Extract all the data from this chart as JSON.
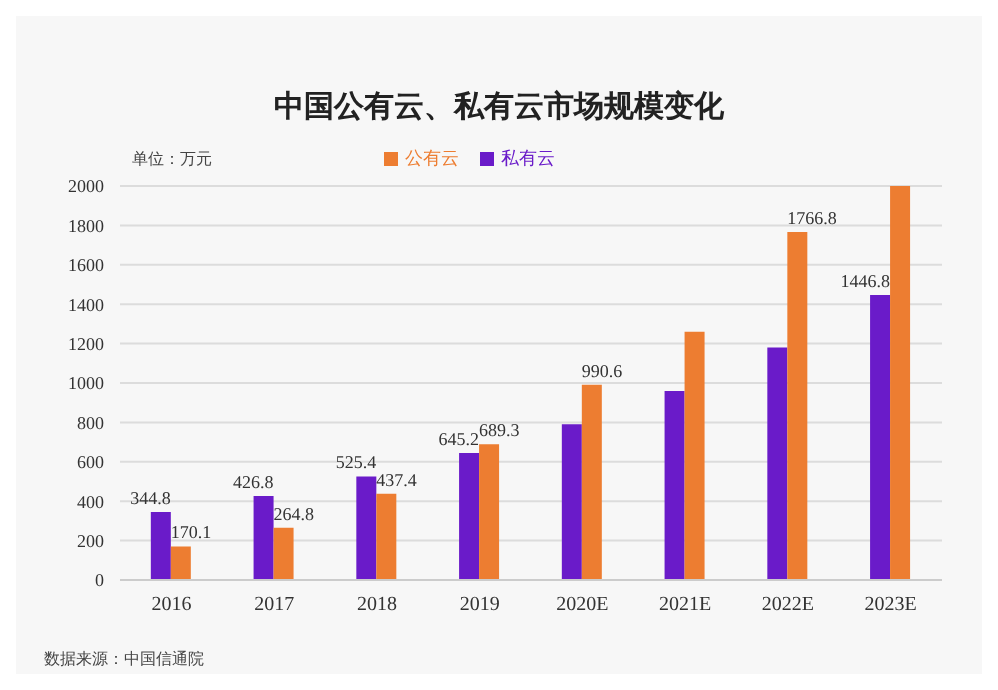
{
  "chart_data": {
    "type": "bar",
    "title": "中国公有云、私有云市场规模变化",
    "categories": [
      "2016",
      "2017",
      "2018",
      "2019",
      "2020E",
      "2021E",
      "2022E",
      "2023E"
    ],
    "series": [
      {
        "name": "私有云",
        "color": "#6a1bc9",
        "values": [
          344.8,
          426.8,
          525.4,
          645.2,
          790,
          960,
          1180,
          1446.8
        ],
        "value_labels": [
          "344.8",
          "426.8",
          "525.4",
          "645.2",
          null,
          null,
          null,
          "1446.8"
        ]
      },
      {
        "name": "公有云",
        "color": "#ed7d31",
        "values": [
          170.1,
          264.8,
          437.4,
          689.3,
          990.6,
          1260,
          1766.8,
          2000
        ],
        "value_labels": [
          "170.1",
          "264.8",
          "437.4",
          "689.3",
          "990.6",
          null,
          "1766.8",
          null
        ]
      }
    ],
    "ylim": [
      0,
      2000
    ],
    "yticks": [
      0,
      200,
      400,
      600,
      800,
      1000,
      1200,
      1400,
      1600,
      1800,
      2000
    ],
    "grid": "y",
    "legend": "top",
    "annotations": [
      "单位：万元",
      "数据来源：中国信通院"
    ]
  }
}
